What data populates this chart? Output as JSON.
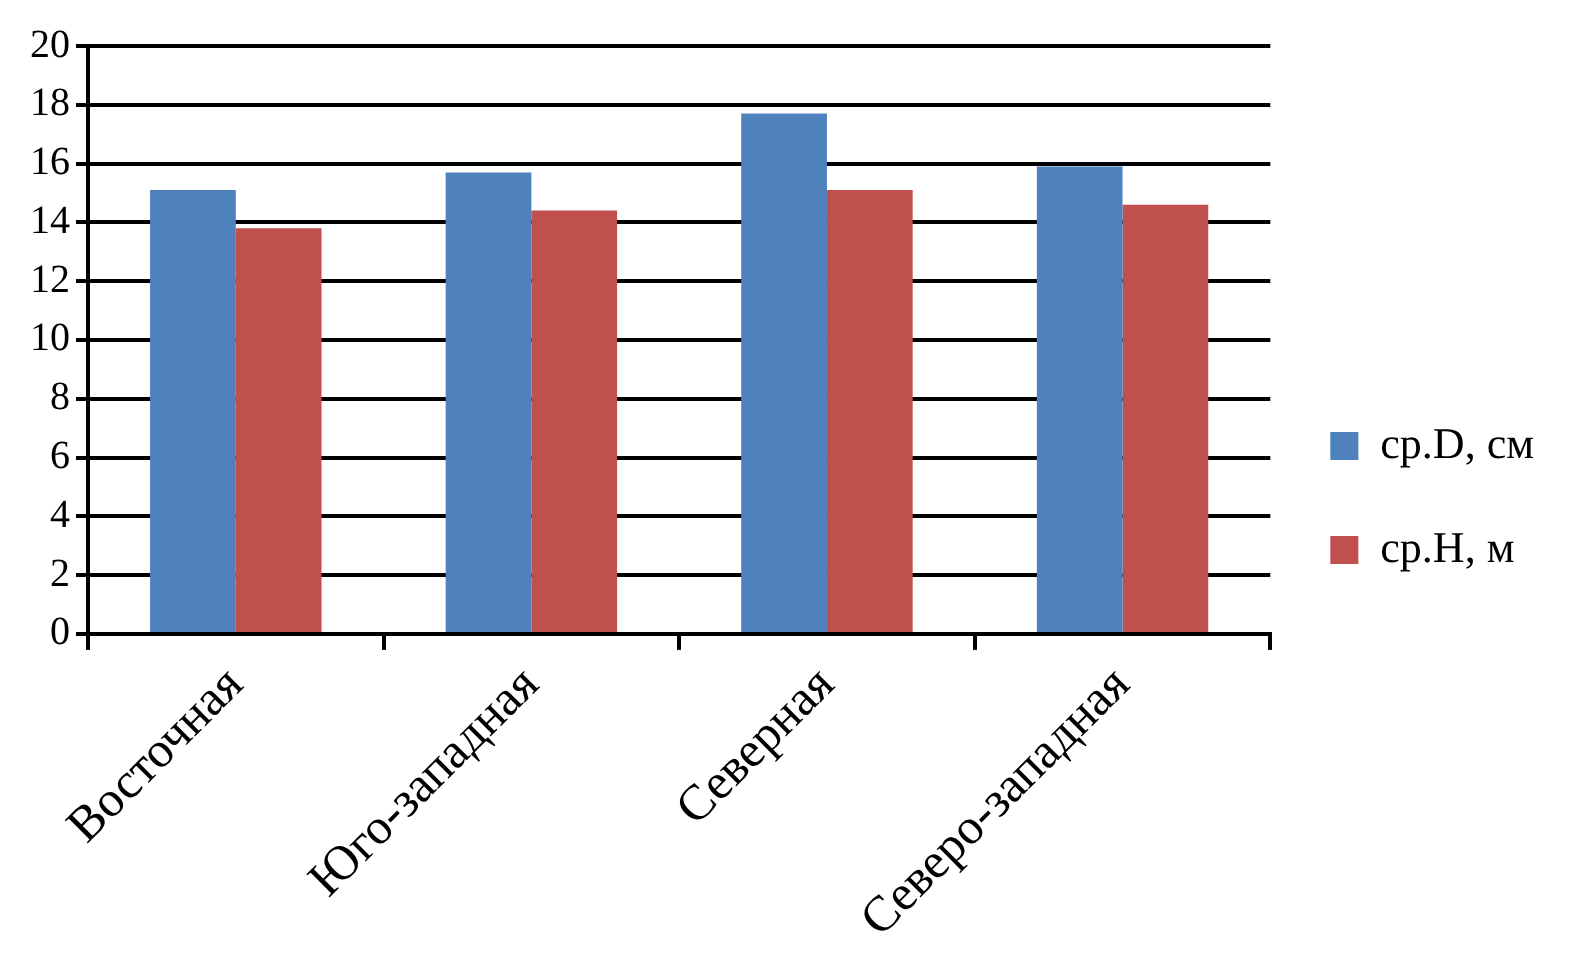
{
  "chart_data": {
    "type": "bar",
    "categories": [
      "Восточная",
      "Юго-западная",
      "Северная",
      "Северо-западная"
    ],
    "series": [
      {
        "name": "ср.D, см",
        "color": "#4f81bd",
        "values": [
          15.1,
          15.7,
          17.7,
          15.9
        ]
      },
      {
        "name": "ср.H, м",
        "color": "#c0504d",
        "values": [
          13.8,
          14.4,
          15.1,
          14.6
        ]
      }
    ],
    "ylim": [
      0,
      20
    ],
    "yticks": [
      0,
      2,
      4,
      6,
      8,
      10,
      12,
      14,
      16,
      18,
      20
    ],
    "grid": "y",
    "legend": "right"
  }
}
